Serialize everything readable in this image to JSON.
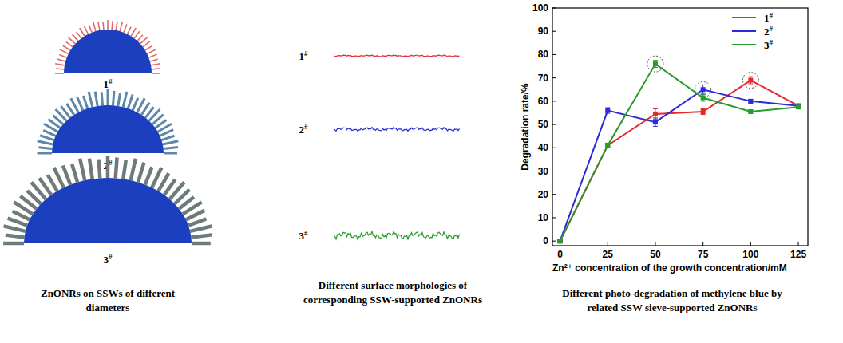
{
  "chart_data": {
    "type": "line",
    "title": "Different photo-degradation of methylene blue by related SSW sieve-supported ZnONRs",
    "x_label": "Zn²⁺ concentration of the growth concentration/mM",
    "y_label": "Degradation rate/%",
    "x": [
      0,
      25,
      50,
      75,
      100,
      125
    ],
    "xlim": [
      -4,
      130
    ],
    "xticks": [
      0,
      25,
      50,
      75,
      100,
      125
    ],
    "ylim": [
      -2,
      100
    ],
    "yticks": [
      0,
      10,
      20,
      30,
      40,
      50,
      60,
      70,
      80,
      90,
      100
    ],
    "legend": "upper right",
    "marker": "square",
    "series": [
      {
        "name": "1#",
        "color": "#e8282a",
        "values": [
          0,
          41,
          54.5,
          55.5,
          69,
          58
        ],
        "errors": [
          0.5,
          1,
          2.2,
          1.2,
          1.5,
          0.5
        ]
      },
      {
        "name": "2#",
        "color": "#2b2bd8",
        "values": [
          0,
          56,
          51,
          65,
          60,
          58
        ],
        "errors": [
          0.5,
          1.2,
          1.8,
          2,
          0.8,
          0.5
        ]
      },
      {
        "name": "3#",
        "color": "#2a9a2a",
        "values": [
          0,
          41,
          76,
          61.5,
          55.5,
          57.5
        ],
        "errors": [
          0.5,
          1,
          1.5,
          1.5,
          0.8,
          0.6
        ]
      }
    ]
  },
  "panels": [
    {
      "caption": "ZnONRs on SSWs of different diameters",
      "items": [
        "1#",
        "2#",
        "3#"
      ]
    },
    {
      "caption": "Different surface morphologies of corresponding SSW-supported ZnONRs",
      "items": [
        "1#",
        "2#",
        "3#"
      ]
    }
  ]
}
